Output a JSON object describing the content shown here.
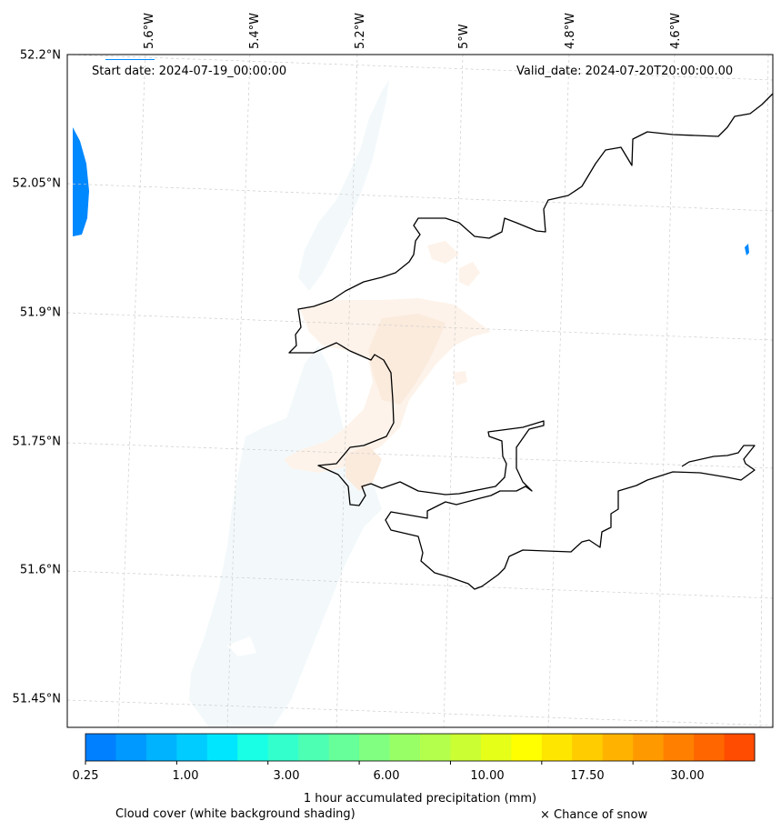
{
  "header": {
    "start_date": "Start date: 2024-07-19_00:00:00",
    "valid_date": "Valid_date: 2024-07-20T20:00:00.00"
  },
  "lat_labels": [
    "52.2°N",
    "52.05°N",
    "51.9°N",
    "51.75°N",
    "51.6°N",
    "51.45°N"
  ],
  "lon_labels": [
    "5.6°W",
    "5.4°W",
    "5.2°W",
    "5°W",
    "4.8°W",
    "4.6°W"
  ],
  "colorbar": {
    "label": "1 hour accumulated precipitation (mm)",
    "tick_labels": [
      "0.25",
      "1.00",
      "3.00",
      "6.00",
      "10.00",
      "17.50",
      "30.00"
    ],
    "colors": [
      "#0080ff",
      "#0099ff",
      "#00b3ff",
      "#00ccff",
      "#00e6ff",
      "#19ffe6",
      "#33ffcc",
      "#4cffb3",
      "#66ff99",
      "#80ff80",
      "#99ff66",
      "#b3ff4c",
      "#ccff33",
      "#e6ff19",
      "#ffff00",
      "#ffe600",
      "#ffcc00",
      "#ffb300",
      "#ff9900",
      "#ff8000",
      "#ff6600",
      "#ff4c00"
    ]
  },
  "legend": {
    "cloud_cover": "Cloud cover (white background shading)",
    "snow": "× Chance of snow"
  },
  "colors": {
    "coastline": "#000000",
    "gridline": "#cccccc",
    "cloud": "#eef6f8",
    "light_precip": "#fdf0e6",
    "heavy_precip": "#0088ff"
  }
}
